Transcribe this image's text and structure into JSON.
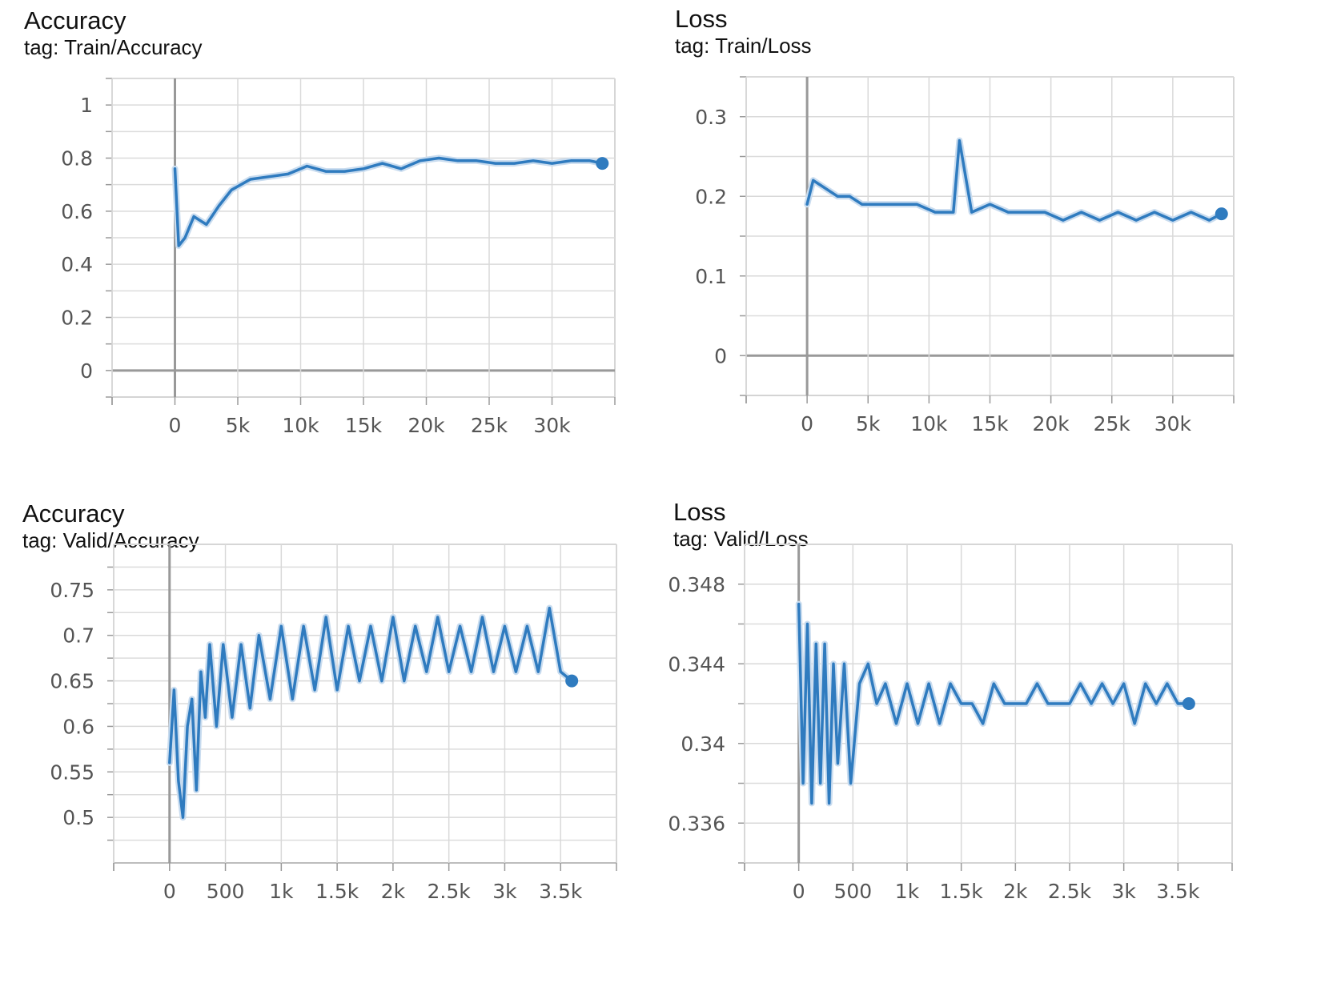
{
  "chart_data": [
    {
      "type": "line",
      "title": "Accuracy",
      "subtitle": "tag: Train/Accuracy",
      "x_ticks": [
        "0",
        "5k",
        "10k",
        "15k",
        "20k",
        "25k",
        "30k"
      ],
      "y_ticks": [
        "1",
        "0.8",
        "0.6",
        "0.4",
        "0.2",
        "0"
      ],
      "xlim": [
        -5000,
        35000
      ],
      "ylim": [
        -0.1,
        1.1
      ],
      "grid": true,
      "series": [
        {
          "color": "#2f7bbf",
          "x": [
            0,
            300,
            800,
            1500,
            2500,
            3500,
            4500,
            6000,
            7500,
            9000,
            10500,
            12000,
            13500,
            15000,
            16500,
            18000,
            19500,
            21000,
            22500,
            24000,
            25500,
            27000,
            28500,
            30000,
            31500,
            33000,
            34000
          ],
          "y": [
            0.76,
            0.47,
            0.5,
            0.58,
            0.55,
            0.62,
            0.68,
            0.72,
            0.73,
            0.74,
            0.77,
            0.75,
            0.75,
            0.76,
            0.78,
            0.76,
            0.79,
            0.8,
            0.79,
            0.79,
            0.78,
            0.78,
            0.79,
            0.78,
            0.79,
            0.79,
            0.78
          ]
        }
      ]
    },
    {
      "type": "line",
      "title": "Loss",
      "subtitle": "tag: Train/Loss",
      "x_ticks": [
        "0",
        "5k",
        "10k",
        "15k",
        "20k",
        "25k",
        "30k"
      ],
      "y_ticks": [
        "0.3",
        "0.2",
        "0.1",
        "0"
      ],
      "xlim": [
        -5000,
        35000
      ],
      "ylim": [
        -0.05,
        0.35
      ],
      "grid": true,
      "series": [
        {
          "color": "#2f7bbf",
          "x": [
            0,
            500,
            1500,
            2500,
            3500,
            4500,
            6000,
            7500,
            9000,
            10500,
            12000,
            12500,
            13500,
            15000,
            16500,
            18000,
            19500,
            21000,
            22500,
            24000,
            25500,
            27000,
            28500,
            30000,
            31500,
            33000,
            34000
          ],
          "y": [
            0.19,
            0.22,
            0.21,
            0.2,
            0.2,
            0.19,
            0.19,
            0.19,
            0.19,
            0.18,
            0.18,
            0.27,
            0.18,
            0.19,
            0.18,
            0.18,
            0.18,
            0.17,
            0.18,
            0.17,
            0.18,
            0.17,
            0.18,
            0.17,
            0.18,
            0.17,
            0.178
          ]
        }
      ]
    },
    {
      "type": "line",
      "title": "Accuracy",
      "subtitle": "tag: Valid/Accuracy",
      "x_ticks": [
        "0",
        "500",
        "1k",
        "1.5k",
        "2k",
        "2.5k",
        "3k",
        "3.5k"
      ],
      "y_ticks": [
        "0.75",
        "0.7",
        "0.65",
        "0.6",
        "0.55",
        "0.5"
      ],
      "xlim": [
        -500,
        4000
      ],
      "ylim": [
        0.45,
        0.8
      ],
      "grid": true,
      "series": [
        {
          "color": "#2f7bbf",
          "x": [
            0,
            40,
            80,
            120,
            160,
            200,
            240,
            280,
            320,
            360,
            420,
            480,
            560,
            640,
            720,
            800,
            900,
            1000,
            1100,
            1200,
            1300,
            1400,
            1500,
            1600,
            1700,
            1800,
            1900,
            2000,
            2100,
            2200,
            2300,
            2400,
            2500,
            2600,
            2700,
            2800,
            2900,
            3000,
            3100,
            3200,
            3300,
            3400,
            3500,
            3600
          ],
          "y": [
            0.56,
            0.64,
            0.54,
            0.5,
            0.6,
            0.63,
            0.53,
            0.66,
            0.61,
            0.69,
            0.6,
            0.69,
            0.61,
            0.69,
            0.62,
            0.7,
            0.63,
            0.71,
            0.63,
            0.71,
            0.64,
            0.72,
            0.64,
            0.71,
            0.65,
            0.71,
            0.65,
            0.72,
            0.65,
            0.71,
            0.66,
            0.72,
            0.66,
            0.71,
            0.66,
            0.72,
            0.66,
            0.71,
            0.66,
            0.71,
            0.66,
            0.73,
            0.66,
            0.65
          ]
        }
      ]
    },
    {
      "type": "line",
      "title": "Loss",
      "subtitle": "tag: Valid/Loss",
      "x_ticks": [
        "0",
        "500",
        "1k",
        "1.5k",
        "2k",
        "2.5k",
        "3k",
        "3.5k"
      ],
      "y_ticks": [
        "0.348",
        "0.344",
        "0.34",
        "0.336"
      ],
      "xlim": [
        -500,
        4000
      ],
      "ylim": [
        0.334,
        0.35
      ],
      "grid": true,
      "series": [
        {
          "color": "#2f7bbf",
          "x": [
            0,
            40,
            80,
            120,
            160,
            200,
            240,
            280,
            320,
            360,
            420,
            480,
            560,
            640,
            720,
            800,
            900,
            1000,
            1100,
            1200,
            1300,
            1400,
            1500,
            1600,
            1700,
            1800,
            1900,
            2000,
            2100,
            2200,
            2300,
            2400,
            2500,
            2600,
            2700,
            2800,
            2900,
            3000,
            3100,
            3200,
            3300,
            3400,
            3500,
            3600
          ],
          "y": [
            0.347,
            0.338,
            0.346,
            0.337,
            0.345,
            0.338,
            0.345,
            0.337,
            0.344,
            0.339,
            0.344,
            0.338,
            0.343,
            0.344,
            0.342,
            0.343,
            0.341,
            0.343,
            0.341,
            0.343,
            0.341,
            0.343,
            0.342,
            0.342,
            0.341,
            0.343,
            0.342,
            0.342,
            0.342,
            0.343,
            0.342,
            0.342,
            0.342,
            0.343,
            0.342,
            0.343,
            0.342,
            0.343,
            0.341,
            0.343,
            0.342,
            0.343,
            0.342,
            0.342
          ]
        }
      ]
    }
  ]
}
